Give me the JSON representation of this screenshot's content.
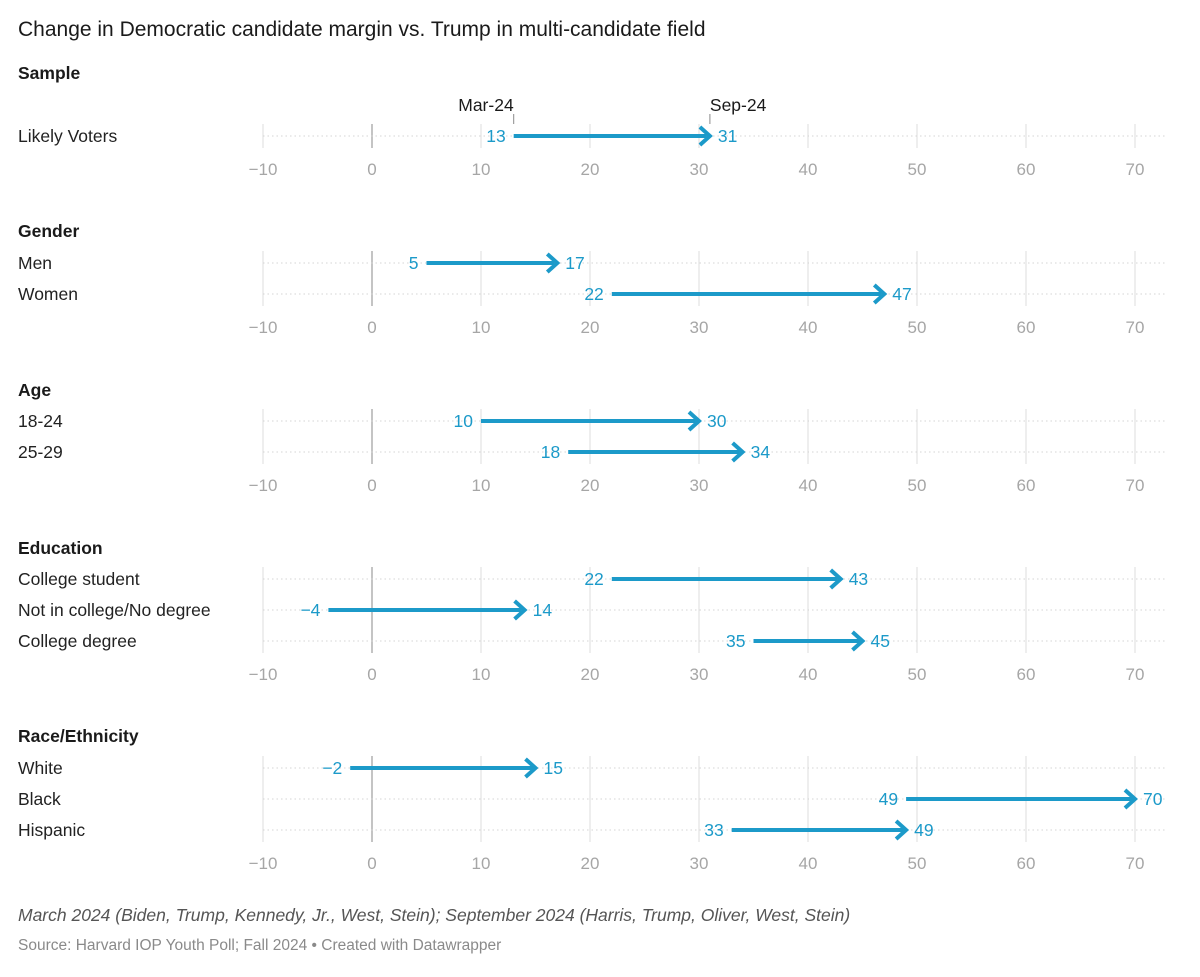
{
  "chart_data": {
    "type": "arrow",
    "title": "Change in Democratic candidate margin vs. Trump in multi-candidate field",
    "start_label": "Mar-24",
    "end_label": "Sep-24",
    "x_ticks": [
      "−10",
      "0",
      "10",
      "20",
      "30",
      "40",
      "50",
      "60",
      "70"
    ],
    "xlim": [
      -10,
      70
    ],
    "groups": [
      {
        "name": "Sample",
        "rows": [
          {
            "label": "Likely Voters",
            "start": 13,
            "end": 31,
            "start_text": "13",
            "end_text": "31"
          }
        ]
      },
      {
        "name": "Gender",
        "rows": [
          {
            "label": "Men",
            "start": 5,
            "end": 17,
            "start_text": "5",
            "end_text": "17"
          },
          {
            "label": "Women",
            "start": 22,
            "end": 47,
            "start_text": "22",
            "end_text": "47"
          }
        ]
      },
      {
        "name": "Age",
        "rows": [
          {
            "label": "18-24",
            "start": 10,
            "end": 30,
            "start_text": "10",
            "end_text": "30"
          },
          {
            "label": "25-29",
            "start": 18,
            "end": 34,
            "start_text": "18",
            "end_text": "34"
          }
        ]
      },
      {
        "name": "Education",
        "rows": [
          {
            "label": "College student",
            "start": 22,
            "end": 43,
            "start_text": "22",
            "end_text": "43"
          },
          {
            "label": "Not in college/No degree",
            "start": -4,
            "end": 14,
            "start_text": "−4",
            "end_text": "14"
          },
          {
            "label": "College degree",
            "start": 35,
            "end": 45,
            "start_text": "35",
            "end_text": "45"
          }
        ]
      },
      {
        "name": "Race/Ethnicity",
        "rows": [
          {
            "label": "White",
            "start": -2,
            "end": 15,
            "start_text": "−2",
            "end_text": "15"
          },
          {
            "label": "Black",
            "start": 49,
            "end": 70,
            "start_text": "49",
            "end_text": "70"
          },
          {
            "label": "Hispanic",
            "start": 33,
            "end": 49,
            "start_text": "33",
            "end_text": "49"
          }
        ]
      }
    ],
    "notes": "March 2024 (Biden, Trump, Kennedy, Jr., West, Stein); September 2024 (Harris, Trump, Oliver, West, Stein)",
    "source": "Source: Harvard IOP Youth Poll; Fall 2024 • Created with Datawrapper",
    "colors": {
      "arrow": "#1c9ac9",
      "grid": "#dedede",
      "zero_line": "#b5b5b5",
      "tick": "#a6a6a6"
    }
  }
}
